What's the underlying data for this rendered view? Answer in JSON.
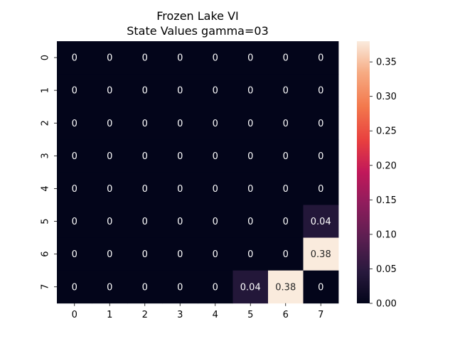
{
  "chart_data": {
    "type": "heatmap",
    "title": [
      "Frozen Lake VI",
      "State Values gamma=03"
    ],
    "xlabel": "",
    "ylabel": "",
    "x_categories": [
      "0",
      "1",
      "2",
      "3",
      "4",
      "5",
      "6",
      "7"
    ],
    "y_categories": [
      "0",
      "1",
      "2",
      "3",
      "4",
      "5",
      "6",
      "7"
    ],
    "values": [
      [
        0,
        0,
        0,
        0,
        0,
        0,
        0,
        0
      ],
      [
        0,
        0,
        0,
        0,
        0,
        0,
        0,
        0
      ],
      [
        0,
        0,
        0,
        0,
        0,
        0,
        0,
        0
      ],
      [
        0,
        0,
        0,
        0,
        0,
        0,
        0,
        0
      ],
      [
        0,
        0,
        0,
        0,
        0,
        0,
        0,
        0
      ],
      [
        0,
        0,
        0,
        0,
        0,
        0,
        0,
        0.04
      ],
      [
        0,
        0,
        0,
        0,
        0,
        0,
        0,
        0.38
      ],
      [
        0,
        0,
        0,
        0,
        0,
        0.04,
        0.38,
        0
      ]
    ],
    "annotations": [
      [
        "0",
        "0",
        "0",
        "0",
        "0",
        "0",
        "0",
        "0"
      ],
      [
        "0",
        "0",
        "0",
        "0",
        "0",
        "0",
        "0",
        "0"
      ],
      [
        "0",
        "0",
        "0",
        "0",
        "0",
        "0",
        "0",
        "0"
      ],
      [
        "0",
        "0",
        "0",
        "0",
        "0",
        "0",
        "0",
        "0"
      ],
      [
        "0",
        "0",
        "0",
        "0",
        "0",
        "0",
        "0",
        "0"
      ],
      [
        "0",
        "0",
        "0",
        "0",
        "0",
        "0",
        "0",
        "0.04"
      ],
      [
        "0",
        "0",
        "0",
        "0",
        "0",
        "0",
        "0",
        "0.38"
      ],
      [
        "0",
        "0",
        "0",
        "0",
        "0",
        "0.04",
        "0.38",
        "0"
      ]
    ],
    "colormap": "rocket",
    "vmin": 0,
    "vmax": 0.38,
    "colorbar_ticks": [
      0.0,
      0.05,
      0.1,
      0.15,
      0.2,
      0.25,
      0.3,
      0.35
    ],
    "colorbar_tick_labels": [
      "0.00",
      "0.05",
      "0.10",
      "0.15",
      "0.20",
      "0.25",
      "0.30",
      "0.35"
    ],
    "grid": false,
    "colorbar_placement": "right"
  }
}
